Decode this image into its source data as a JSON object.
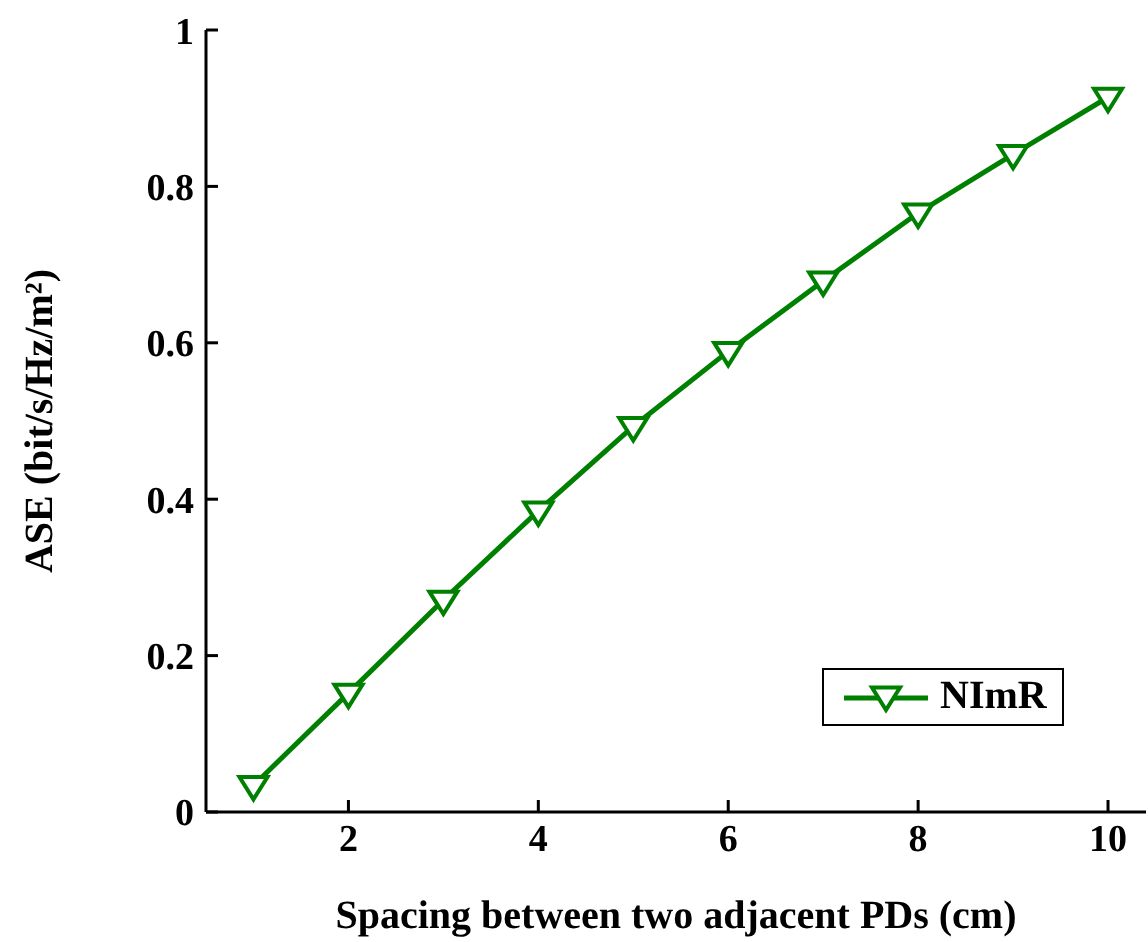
{
  "chart_data": {
    "type": "line",
    "xlabel": "Spacing between two adjacent PDs (cm)",
    "ylabel": "ASE (bit/s/Hz/m²)",
    "x": [
      1,
      2,
      3,
      4,
      5,
      6,
      7,
      8,
      9,
      10
    ],
    "series": [
      {
        "name": "NImR",
        "color": "#008000",
        "values": [
          0.034,
          0.152,
          0.271,
          0.385,
          0.493,
          0.589,
          0.679,
          0.766,
          0.841,
          0.914
        ]
      }
    ],
    "xlim": [
      0.5,
      10.4
    ],
    "xticks": [
      2,
      4,
      6,
      8,
      10
    ],
    "ylim": [
      0,
      1
    ],
    "yticks": [
      0,
      0.2,
      0.4,
      0.6,
      0.8,
      1
    ],
    "marker": "triangle",
    "line_style": "solid",
    "legend": "bottom right",
    "grid": false
  }
}
